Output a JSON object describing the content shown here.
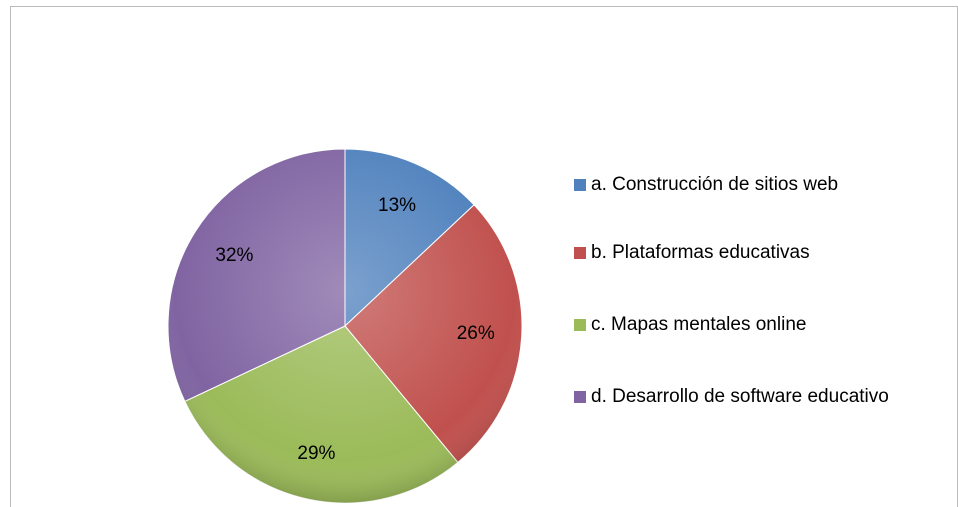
{
  "chart_data": {
    "type": "pie",
    "categories": [
      "a. Construcción de sitios web",
      "b. Plataformas educativas",
      "c. Mapas mentales online",
      "d. Desarrollo de software educativo"
    ],
    "values": [
      13,
      26,
      29,
      32
    ],
    "value_labels": [
      "13%",
      "26%",
      "29%",
      "32%"
    ],
    "colors": [
      "#4f81bd",
      "#c0504d",
      "#9bbb59",
      "#8064a2"
    ],
    "legend": "right"
  }
}
